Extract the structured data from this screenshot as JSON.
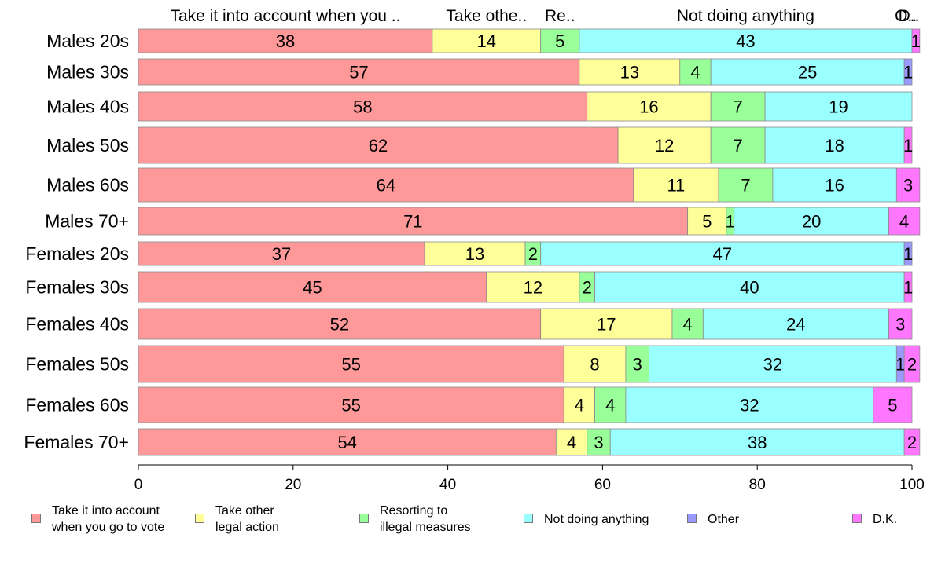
{
  "chart_data": {
    "type": "bar",
    "orientation": "horizontal",
    "stacked": true,
    "categories": [
      "Males 20s",
      "Males 30s",
      "Males 40s",
      "Males 50s",
      "Males 60s",
      "Males 70+",
      "Females 20s",
      "Females 30s",
      "Females 40s",
      "Females 50s",
      "Females 60s",
      "Females 70+"
    ],
    "series": [
      {
        "name": "Take it into account when you go to vote",
        "color": "#ff9999",
        "values": [
          38,
          57,
          58,
          62,
          64,
          71,
          37,
          45,
          52,
          55,
          55,
          54
        ]
      },
      {
        "name": "Take other legal action",
        "color": "#ffff99",
        "values": [
          14,
          13,
          16,
          12,
          11,
          5,
          13,
          12,
          17,
          8,
          4,
          4
        ]
      },
      {
        "name": "Resorting to illegal measures",
        "color": "#99ff99",
        "values": [
          5,
          4,
          7,
          7,
          7,
          1,
          2,
          2,
          4,
          3,
          4,
          3
        ]
      },
      {
        "name": "Not doing anything",
        "color": "#99ffff",
        "values": [
          43,
          25,
          19,
          18,
          16,
          20,
          47,
          40,
          24,
          32,
          32,
          38
        ]
      },
      {
        "name": "Other",
        "color": "#9999ff",
        "values": [
          0,
          1,
          0,
          0,
          0,
          0,
          1,
          0,
          0,
          1,
          0,
          0
        ]
      },
      {
        "name": "D.K.",
        "color": "#ff77ff",
        "values": [
          1,
          0,
          0,
          1,
          3,
          4,
          0,
          1,
          3,
          2,
          5,
          2
        ]
      }
    ],
    "top_labels": [
      "Take it into account when you ..",
      "Take othe..",
      "Re..",
      "Not doing anything",
      "O..",
      "D.."
    ],
    "xlim": [
      0,
      100
    ],
    "xticks": [
      0,
      20,
      40,
      60,
      80,
      100
    ],
    "legend_position": "bottom",
    "grid": false
  },
  "legend": {
    "items": [
      {
        "label": "Take it into account\nwhen you go to vote",
        "color": "#ff9999"
      },
      {
        "label": "Take other\nlegal action",
        "color": "#ffff99"
      },
      {
        "label": "Resorting to\nillegal measures",
        "color": "#99ff99"
      },
      {
        "label": "Not doing anything",
        "color": "#99ffff"
      },
      {
        "label": "Other",
        "color": "#9999ff"
      },
      {
        "label": "D.K.",
        "color": "#ff77ff"
      }
    ]
  }
}
